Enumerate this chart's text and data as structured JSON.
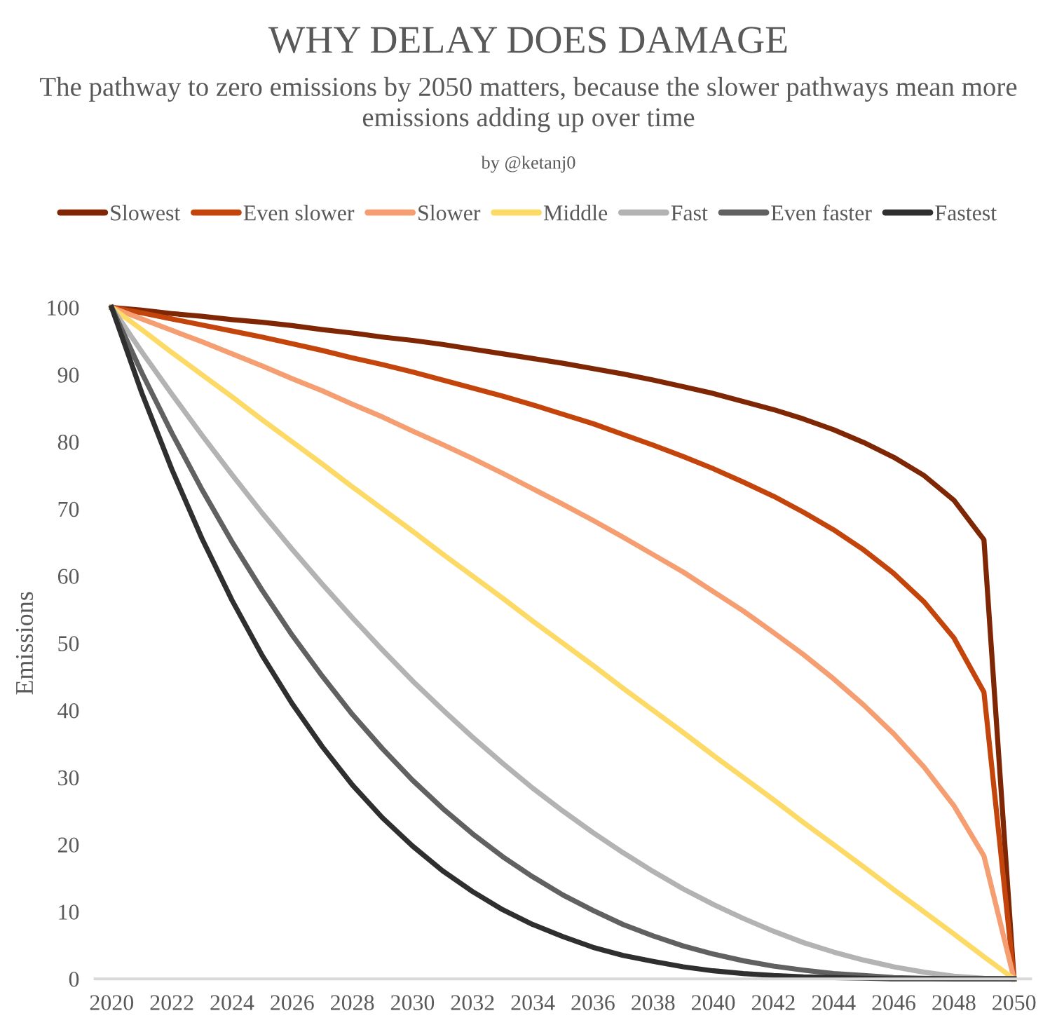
{
  "chart_data": {
    "type": "line",
    "title": "WHY DELAY DOES DAMAGE",
    "subtitle": "The pathway to zero emissions by 2050 matters, because the slower pathways mean more emissions adding up over time",
    "annotations": [
      "by @ketanj0"
    ],
    "ylabel": "Emissions",
    "categories": [
      "2020",
      null,
      "2022",
      null,
      "2024",
      null,
      "2026",
      null,
      "2028",
      null,
      "2030",
      null,
      "2032",
      null,
      "2034",
      null,
      "2036",
      null,
      "2038",
      null,
      "2040",
      null,
      "2042",
      null,
      "2044",
      null,
      "2046",
      null,
      "2048",
      null,
      "2050"
    ],
    "ylim": [
      0,
      100
    ],
    "yticks": [
      0,
      10,
      20,
      30,
      40,
      50,
      60,
      70,
      80,
      90,
      100
    ],
    "grid": false,
    "legend": "top",
    "marker": "none",
    "line_style": "solid",
    "series": [
      {
        "name": "Slowest",
        "color": "#7f2704",
        "values": [
          100,
          99.6,
          99.1,
          98.7,
          98.2,
          97.8,
          97.3,
          96.7,
          96.2,
          95.6,
          95.1,
          94.5,
          93.8,
          93.1,
          92.4,
          91.7,
          90.9,
          90.1,
          89.2,
          88.2,
          87.2,
          86,
          84.8,
          83.4,
          81.8,
          79.9,
          77.7,
          75,
          71.3,
          65.4,
          0
        ]
      },
      {
        "name": "Even slower",
        "color": "#c4450c",
        "values": [
          100,
          99.2,
          98.3,
          97.4,
          96.5,
          95.6,
          94.6,
          93.6,
          92.5,
          91.5,
          90.4,
          89.2,
          88,
          86.8,
          85.5,
          84.1,
          82.7,
          81.1,
          79.5,
          77.8,
          76,
          74,
          71.9,
          69.5,
          66.9,
          63.9,
          60.4,
          56.2,
          50.8,
          42.7,
          0
        ]
      },
      {
        "name": "Slower",
        "color": "#f59e72",
        "values": [
          100,
          98.3,
          96.6,
          94.9,
          93.1,
          91.3,
          89.4,
          87.6,
          85.6,
          83.7,
          81.6,
          79.6,
          77.5,
          75.3,
          73,
          70.7,
          68.3,
          65.8,
          63.2,
          60.6,
          57.7,
          54.8,
          51.6,
          48.3,
          44.7,
          40.8,
          36.5,
          31.6,
          25.8,
          18.3,
          0
        ]
      },
      {
        "name": "Middle",
        "color": "#fdd966",
        "values": [
          100,
          96.7,
          93.3,
          90,
          86.7,
          83.3,
          80,
          76.7,
          73.3,
          70,
          66.7,
          63.3,
          60,
          56.7,
          53.3,
          50,
          46.7,
          43.3,
          40,
          36.7,
          33.3,
          30,
          26.7,
          23.3,
          20,
          16.7,
          13.3,
          10,
          6.7,
          3.3,
          0
        ]
      },
      {
        "name": "Fast",
        "color": "#b3b3b3",
        "values": [
          100,
          93.4,
          87.1,
          81,
          75.1,
          69.4,
          64,
          58.8,
          53.8,
          49,
          44.4,
          40.1,
          36,
          32.1,
          28.4,
          25,
          21.8,
          18.8,
          16,
          13.4,
          11.1,
          9,
          7.1,
          5.4,
          4,
          2.8,
          1.8,
          1,
          0.4,
          0.1,
          0
        ]
      },
      {
        "name": "Even faster",
        "color": "#616161",
        "values": [
          100,
          90.3,
          81.3,
          72.9,
          65.1,
          57.9,
          51.2,
          45.1,
          39.4,
          34.3,
          29.6,
          25.4,
          21.6,
          18.2,
          15.2,
          12.5,
          10.2,
          8.1,
          6.4,
          4.9,
          3.7,
          2.7,
          1.9,
          1.3,
          0.8,
          0.5,
          0.2,
          0.1,
          0,
          0,
          0
        ]
      },
      {
        "name": "Fastest",
        "color": "#2f2f2f",
        "values": [
          100,
          87.3,
          75.9,
          65.6,
          56.4,
          48.2,
          41,
          34.6,
          28.9,
          24,
          19.8,
          16.1,
          13,
          10.3,
          8.1,
          6.3,
          4.7,
          3.5,
          2.6,
          1.8,
          1.2,
          0.8,
          0.5,
          0.3,
          0.2,
          0.1,
          0,
          0,
          0,
          0,
          0
        ]
      }
    ]
  }
}
